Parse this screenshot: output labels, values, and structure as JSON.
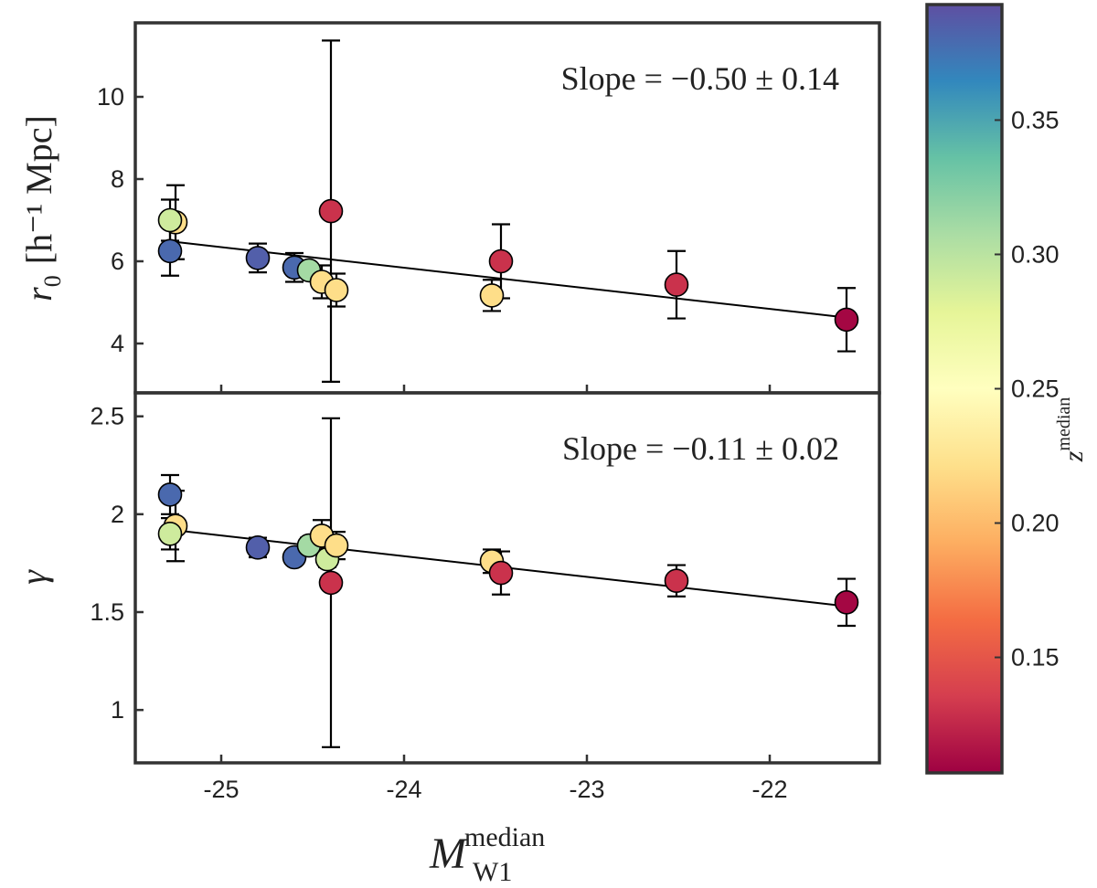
{
  "chart_data": {
    "type": "scatter",
    "shared_x": {
      "label": "M",
      "label_superscript": "median",
      "label_subscript": "W1",
      "range": [
        -25.47,
        -21.4
      ],
      "ticks": [
        -25,
        -24,
        -23,
        -22
      ],
      "tick_labels": [
        "-25",
        "-24",
        "-23",
        "-22"
      ]
    },
    "panels": [
      {
        "id": "r0",
        "ylabel_main": "r",
        "ylabel_sub": "0",
        "ylabel_unit": "[h⁻¹ Mpc]",
        "ylim": [
          2.8,
          11.8
        ],
        "yticks": [
          4,
          6,
          8,
          10
        ],
        "ytick_labels": [
          "4",
          "6",
          "8",
          "10"
        ],
        "annotation": "Slope = −0.50 ± 0.14",
        "fit_line": {
          "x": [
            -25.27,
            -21.58
          ],
          "y": [
            6.48,
            4.63
          ]
        },
        "points": [
          {
            "x": -25.25,
            "y": 6.95,
            "err": 0.9,
            "z": 0.22
          },
          {
            "x": -25.28,
            "y": 7.0,
            "err": 0.5,
            "z": 0.29
          },
          {
            "x": -25.28,
            "y": 6.25,
            "err": 0.6,
            "z": 0.38
          },
          {
            "x": -24.8,
            "y": 6.08,
            "err": 0.35,
            "z": 0.385
          },
          {
            "x": -24.6,
            "y": 5.85,
            "err": 0.35,
            "z": 0.38
          },
          {
            "x": -24.52,
            "y": 5.78,
            "err": 0.15,
            "z": 0.31
          },
          {
            "x": -24.45,
            "y": 5.5,
            "err": 0.4,
            "z": 0.22
          },
          {
            "x": -24.4,
            "y": 7.22,
            "err": 4.15,
            "z": 0.13
          },
          {
            "x": -24.37,
            "y": 5.3,
            "err": 0.4,
            "z": 0.22
          },
          {
            "x": -23.52,
            "y": 5.17,
            "err": 0.38,
            "z": 0.22
          },
          {
            "x": -23.47,
            "y": 6.0,
            "err": 0.9,
            "z": 0.13
          },
          {
            "x": -22.51,
            "y": 5.43,
            "err": 0.82,
            "z": 0.13
          },
          {
            "x": -21.58,
            "y": 4.58,
            "err": 0.77,
            "z": 0.11
          }
        ]
      },
      {
        "id": "gamma",
        "ylabel_main": "γ",
        "ylim": [
          0.73,
          2.62
        ],
        "yticks": [
          1,
          1.5,
          2,
          2.5
        ],
        "ytick_labels": [
          "1",
          "1.5",
          "2",
          "2.5"
        ],
        "annotation": "Slope = −0.11 ± 0.02",
        "fit_line": {
          "x": [
            -25.27,
            -21.58
          ],
          "y": [
            1.92,
            1.53
          ]
        },
        "points": [
          {
            "x": -25.28,
            "y": 2.1,
            "err": 0.1,
            "z": 0.38
          },
          {
            "x": -25.25,
            "y": 1.94,
            "err": 0.18,
            "z": 0.22
          },
          {
            "x": -25.28,
            "y": 1.9,
            "err": 0.08,
            "z": 0.29
          },
          {
            "x": -24.8,
            "y": 1.83,
            "err": 0.05,
            "z": 0.385
          },
          {
            "x": -24.6,
            "y": 1.78,
            "err": 0.03,
            "z": 0.38
          },
          {
            "x": -24.52,
            "y": 1.84,
            "err": 0.04,
            "z": 0.31
          },
          {
            "x": -24.45,
            "y": 1.89,
            "err": 0.08,
            "z": 0.22
          },
          {
            "x": -24.42,
            "y": 1.77,
            "err": 0.04,
            "z": 0.29
          },
          {
            "x": -24.4,
            "y": 1.65,
            "err": 0.84,
            "z": 0.13
          },
          {
            "x": -24.37,
            "y": 1.84,
            "err": 0.07,
            "z": 0.22
          },
          {
            "x": -23.52,
            "y": 1.76,
            "err": 0.06,
            "z": 0.22
          },
          {
            "x": -23.47,
            "y": 1.7,
            "err": 0.11,
            "z": 0.13
          },
          {
            "x": -22.51,
            "y": 1.66,
            "err": 0.08,
            "z": 0.13
          },
          {
            "x": -21.58,
            "y": 1.55,
            "err": 0.12,
            "z": 0.11
          }
        ]
      }
    ],
    "colorbar": {
      "label": "z",
      "label_superscript": "median",
      "range": [
        0.107,
        0.393
      ],
      "ticks": [
        0.15,
        0.2,
        0.25,
        0.3,
        0.35
      ],
      "tick_labels": [
        "0.15",
        "0.20",
        "0.25",
        "0.30",
        "0.35"
      ],
      "colormap": "Spectral",
      "stops": [
        {
          "t": 0.0,
          "color": "#9e0142"
        },
        {
          "t": 0.1,
          "color": "#d53e4f"
        },
        {
          "t": 0.2,
          "color": "#f46d43"
        },
        {
          "t": 0.3,
          "color": "#fdae61"
        },
        {
          "t": 0.4,
          "color": "#fee08b"
        },
        {
          "t": 0.5,
          "color": "#ffffbf"
        },
        {
          "t": 0.6,
          "color": "#e6f598"
        },
        {
          "t": 0.7,
          "color": "#abdda4"
        },
        {
          "t": 0.8,
          "color": "#66c2a5"
        },
        {
          "t": 0.9,
          "color": "#3288bd"
        },
        {
          "t": 1.0,
          "color": "#5e4fa2"
        }
      ]
    }
  }
}
